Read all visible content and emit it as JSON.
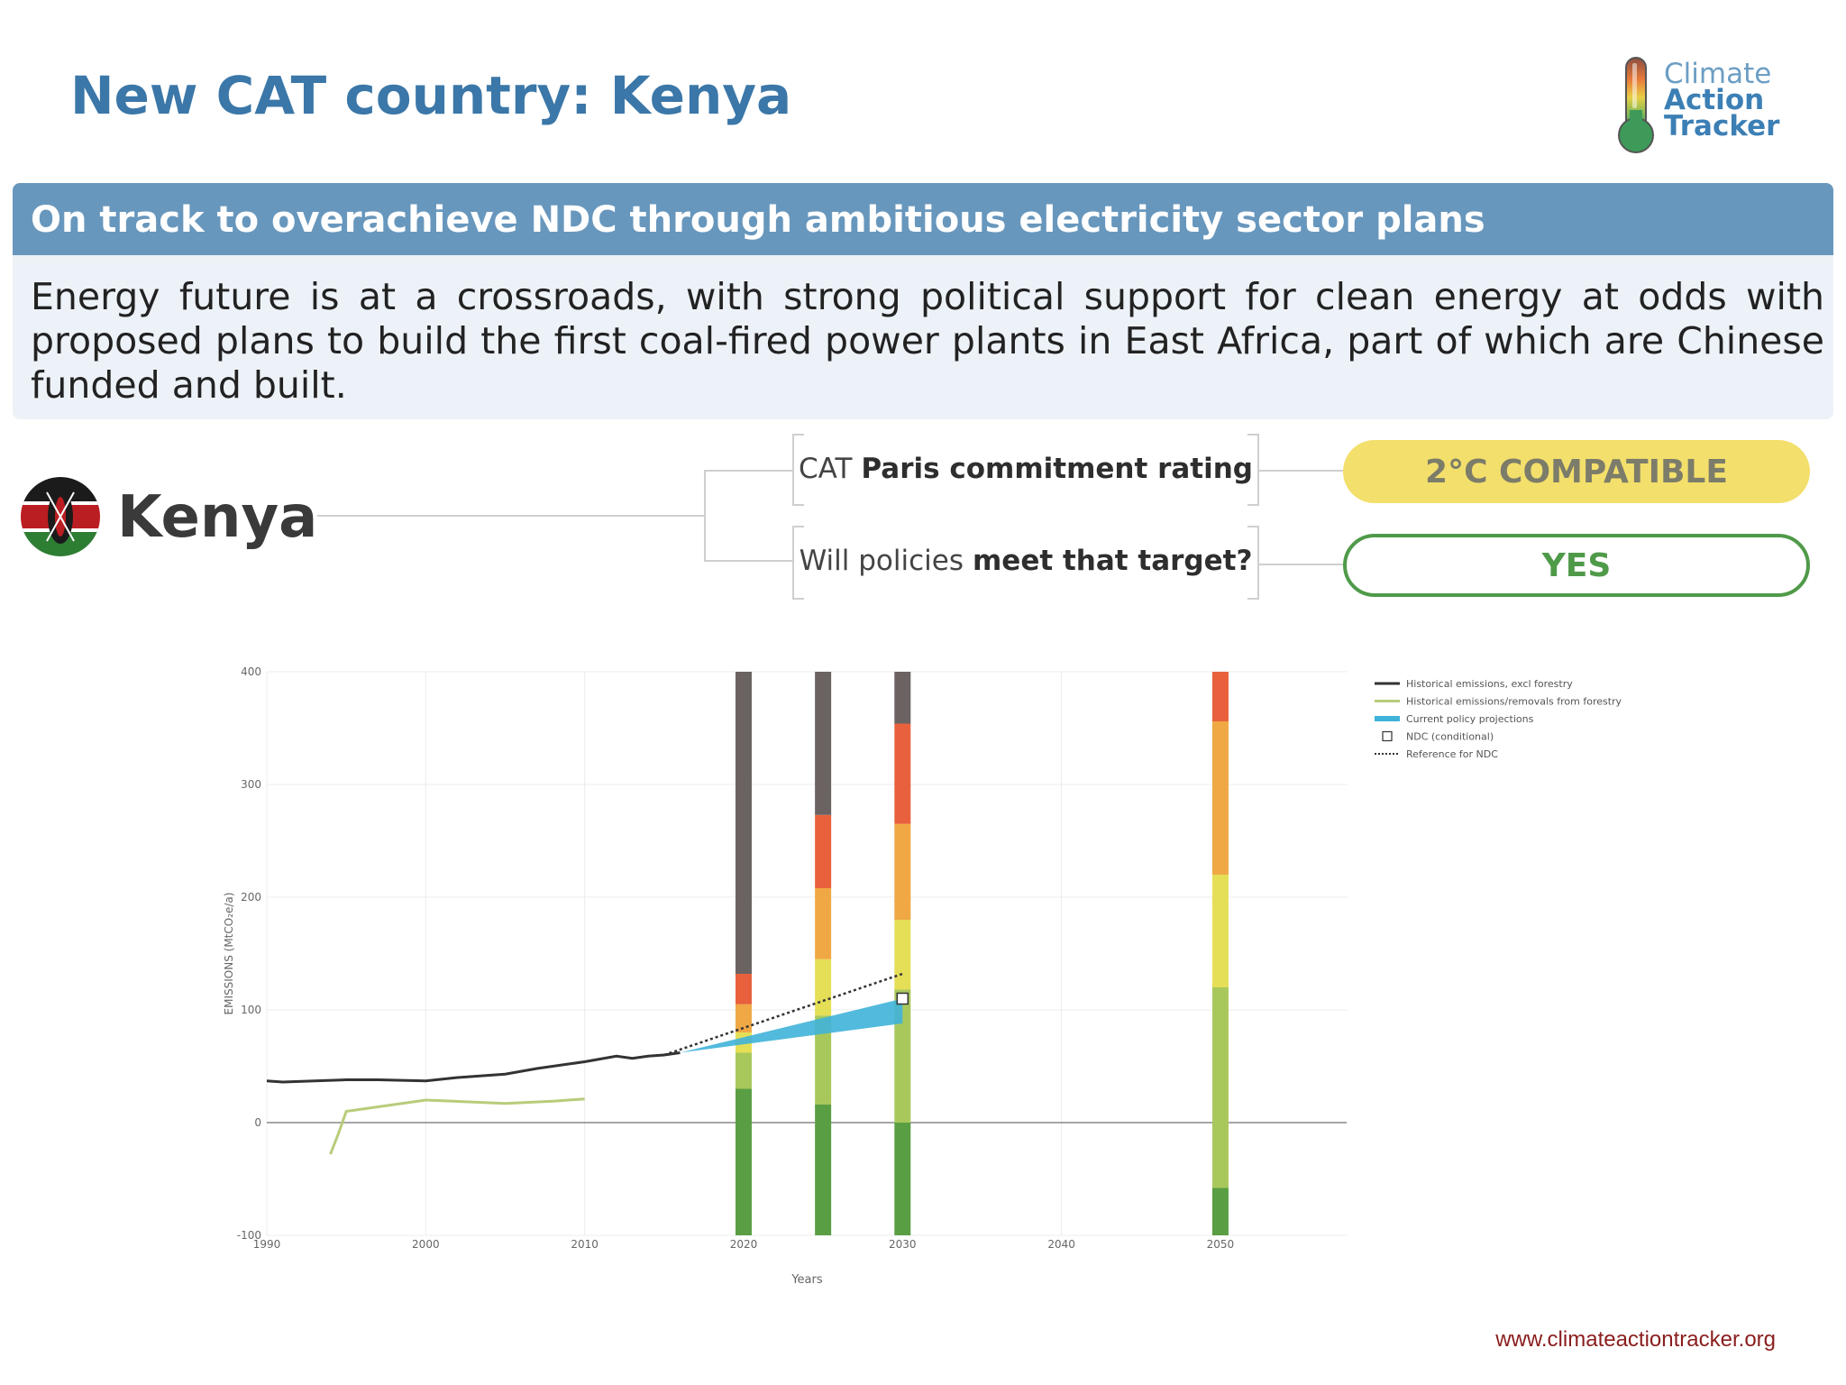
{
  "slide": {
    "title": "New CAT country: Kenya",
    "headline": "On track to overachieve NDC through ambitious electricity sector plans",
    "summary": "Energy future is at a crossroads, with strong political support for clean energy at odds with proposed plans to build the first coal-fired power plants in East Africa, part of which are Chinese funded and built.",
    "footer_url": "www.climateactiontracker.org"
  },
  "logo": {
    "line1": "Climate",
    "line2": "Action",
    "line3": "Tracker"
  },
  "country": {
    "name": "Kenya"
  },
  "rating": {
    "q1_prefix": "CAT",
    "q1_bold": "Paris commitment rating",
    "q1_answer": "2°C COMPATIBLE",
    "q2_prefix": "Will policies",
    "q2_bold": "meet that target?",
    "q2_answer": "YES"
  },
  "colors": {
    "title": "#3b77a8",
    "headline_bar": "#6897bd",
    "summary_bg": "#edf2f8",
    "compatible_pill": "#f3df6b",
    "yes_outline": "#4f9a49"
  },
  "chart_data": {
    "type": "line",
    "xlabel": "Years",
    "ylabel": "EMISSIONS (MtCO₂e/a)",
    "xlim": [
      1990,
      2058
    ],
    "ylim": [
      -100,
      400
    ],
    "xticks": [
      "1990",
      "2000",
      "2010",
      "2020",
      "2030",
      "2040",
      "2050"
    ],
    "yticks": [
      "-100",
      "0",
      "100",
      "200",
      "300",
      "400"
    ],
    "grid": true,
    "legend_position": "top-right",
    "series": [
      {
        "name": "Historical emissions, excl forestry",
        "color": "#333333",
        "x": [
          1990,
          1991,
          1993,
          1995,
          1997,
          2000,
          2002,
          2005,
          2007,
          2010,
          2012,
          2013,
          2014,
          2015,
          2016
        ],
        "y": [
          37,
          36,
          37,
          38,
          38,
          37,
          40,
          43,
          48,
          54,
          59,
          57,
          59,
          60,
          62
        ]
      },
      {
        "name": "Historical emissions/removals from forestry",
        "color": "#b8cc7a",
        "x": [
          1994,
          1994.5,
          1995,
          1996,
          1998,
          2000,
          2005,
          2008,
          2010
        ],
        "y": [
          -28,
          -10,
          10,
          12,
          16,
          20,
          17,
          19,
          21
        ]
      },
      {
        "name": "Current policy projections",
        "color": "#3fb3d9",
        "x": [
          2016,
          2030
        ],
        "y_low": [
          62,
          88
        ],
        "y_high": [
          62,
          110
        ]
      },
      {
        "name": "NDC (conditional)",
        "color": "#ffffff",
        "x": [
          2030
        ],
        "y": [
          110
        ]
      },
      {
        "name": "Reference for NDC",
        "color": "#333333",
        "x": [
          2015,
          2030
        ],
        "y": [
          60,
          132
        ]
      }
    ],
    "rating_bars": [
      {
        "x": 2020,
        "bands": [
          [
            -100,
            30,
            "#5a9e44"
          ],
          [
            30,
            62,
            "#a9c85c"
          ],
          [
            62,
            80,
            "#e5df57"
          ],
          [
            80,
            105,
            "#f0a845"
          ],
          [
            105,
            132,
            "#e8613c"
          ],
          [
            132,
            400,
            "#6b6262"
          ]
        ]
      },
      {
        "x": 2025,
        "bands": [
          [
            -100,
            16,
            "#5a9e44"
          ],
          [
            16,
            95,
            "#a9c85c"
          ],
          [
            95,
            145,
            "#e5df57"
          ],
          [
            145,
            208,
            "#f0a845"
          ],
          [
            208,
            273,
            "#e8613c"
          ],
          [
            273,
            400,
            "#6b6262"
          ]
        ]
      },
      {
        "x": 2030,
        "bands": [
          [
            -100,
            0,
            "#5a9e44"
          ],
          [
            0,
            118,
            "#a9c85c"
          ],
          [
            118,
            180,
            "#e5df57"
          ],
          [
            180,
            265,
            "#f0a845"
          ],
          [
            265,
            354,
            "#e8613c"
          ],
          [
            354,
            400,
            "#6b6262"
          ]
        ]
      },
      {
        "x": 2050,
        "bands": [
          [
            -100,
            -58,
            "#5a9e44"
          ],
          [
            -58,
            120,
            "#a9c85c"
          ],
          [
            120,
            220,
            "#e5df57"
          ],
          [
            220,
            356,
            "#f0a845"
          ],
          [
            356,
            400,
            "#e8613c"
          ]
        ]
      }
    ]
  }
}
